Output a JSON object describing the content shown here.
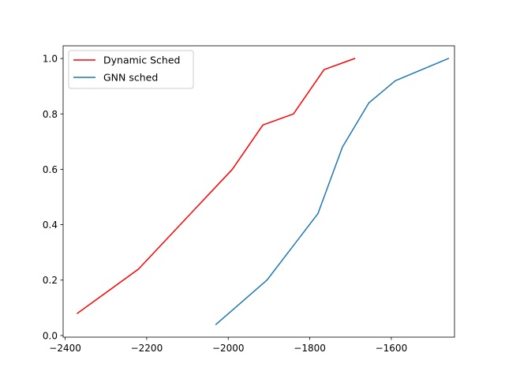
{
  "chart_data": {
    "type": "line",
    "title": "",
    "xlabel": "",
    "ylabel": "",
    "xlim": [
      -2405,
      -1445
    ],
    "ylim": [
      -0.006,
      1.046
    ],
    "xticks": [
      -2400,
      -2200,
      -2000,
      -1800,
      -1600
    ],
    "xtick_labels": [
      "−2400",
      "−2200",
      "−2000",
      "−1800",
      "−1600"
    ],
    "yticks": [
      0.0,
      0.2,
      0.4,
      0.6,
      0.8,
      1.0
    ],
    "ytick_labels": [
      "0.0",
      "0.2",
      "0.4",
      "0.6",
      "0.8",
      "1.0"
    ],
    "grid": false,
    "legend_position": "upper-left",
    "series": [
      {
        "name": "Dynamic Sched",
        "color": "#ff0000",
        "x": [
          -2370,
          -2220,
          -1990,
          -1915,
          -1840,
          -1765,
          -1690
        ],
        "y": [
          0.08,
          0.24,
          0.6,
          0.76,
          0.8,
          0.96,
          1.0
        ]
      },
      {
        "name": "GNN sched",
        "color": "#1f77b4",
        "x": [
          -2030,
          -1905,
          -1780,
          -1720,
          -1655,
          -1590,
          -1460
        ],
        "y": [
          0.04,
          0.2,
          0.44,
          0.68,
          0.84,
          0.92,
          1.0
        ]
      }
    ]
  }
}
